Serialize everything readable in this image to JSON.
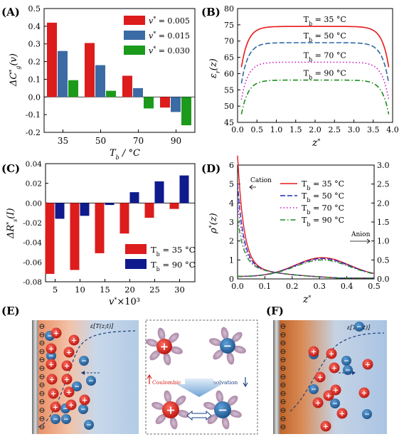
{
  "panels": {
    "A": {
      "label": "(A)"
    },
    "B": {
      "label": "(B)"
    },
    "C": {
      "label": "(C)"
    },
    "D": {
      "label": "(D)"
    },
    "E": {
      "label": "(E)"
    },
    "F": {
      "label": "(F)"
    }
  },
  "schematic": {
    "E_field_label": "ε[T(z;t)]",
    "F_field_label": "ε[T(z;t)]",
    "coulombic": "Coulombic",
    "solvation": "solvation",
    "plus": "+",
    "minus": "−",
    "electrode_sign": "⊖"
  },
  "chart_data": [
    {
      "panel": "A",
      "type": "bar",
      "categories": [
        "35",
        "50",
        "70",
        "90"
      ],
      "series": [
        {
          "name": "v* = 0.005",
          "color": "#dd1c1c",
          "values": [
            0.42,
            0.305,
            0.12,
            -0.06
          ]
        },
        {
          "name": "v* = 0.015",
          "color": "#3b6ba5",
          "values": [
            0.26,
            0.18,
            0.05,
            -0.085
          ]
        },
        {
          "name": "v* = 0.030",
          "color": "#1c9a1c",
          "values": [
            0.095,
            0.035,
            -0.065,
            -0.16
          ]
        }
      ],
      "xlabel": "T_b / °C",
      "ylabel": "ΔC*_g(v)",
      "ylim": [
        -0.2,
        0.5
      ],
      "yticks": [
        "-0.2",
        "-0.1",
        "0.0",
        "0.1",
        "0.2",
        "0.3",
        "0.4",
        "0.5"
      ],
      "legend": "top-right"
    },
    {
      "panel": "B",
      "type": "line",
      "x_range": [
        0,
        4
      ],
      "xticks": [
        "0.0",
        "0.5",
        "1.0",
        "1.5",
        "2.0",
        "2.5",
        "3.0",
        "3.5",
        "4.0"
      ],
      "ylim": [
        45,
        80
      ],
      "yticks": [
        "45",
        "50",
        "55",
        "60",
        "65",
        "70",
        "75",
        "80"
      ],
      "series": [
        {
          "name": "T_b = 35 °C",
          "color": "#e8191c",
          "dash": "solid",
          "plateau": 74.5,
          "edge": 62.0
        },
        {
          "name": "T_b = 50 °C",
          "color": "#2f6aa3",
          "dash": "dash",
          "plateau": 69.5,
          "edge": 57.0
        },
        {
          "name": "T_b = 70 °C",
          "color": "#c619c6",
          "dash": "dot",
          "plateau": 63.5,
          "edge": 52.0
        },
        {
          "name": "T_b = 90 °C",
          "color": "#1c8c1c",
          "dash": "dashdot",
          "plateau": 58.0,
          "edge": 47.5
        }
      ],
      "xlabel": "z*",
      "ylabel": "ε_r(z)"
    },
    {
      "panel": "C",
      "type": "bar",
      "categories": [
        "5",
        "10",
        "15",
        "20",
        "25",
        "30"
      ],
      "series": [
        {
          "name": "T_b = 35 °C",
          "color": "#dd1c1c",
          "values": [
            -0.072,
            -0.068,
            -0.051,
            -0.031,
            -0.015,
            -0.006
          ]
        },
        {
          "name": "T_b = 90 °C",
          "color": "#0f1a8c",
          "values": [
            -0.016,
            -0.013,
            -0.002,
            0.011,
            0.022,
            0.028
          ]
        }
      ],
      "xlabel": "v*×10³",
      "ylabel": "ΔR*_s(I)",
      "ylim": [
        -0.08,
        0.04
      ],
      "yticks": [
        "-0.08",
        "-0.06",
        "-0.04",
        "-0.02",
        "0.00",
        "0.02",
        "0.04"
      ],
      "legend": "bottom-right"
    },
    {
      "panel": "D",
      "type": "line",
      "x_range": [
        0,
        0.5
      ],
      "xticks": [
        "0.0",
        "0.1",
        "0.2",
        "0.3",
        "0.4",
        "0.5"
      ],
      "ylim_left": [
        0,
        6
      ],
      "yticks_left": [
        "0",
        "1",
        "2",
        "3",
        "4",
        "5",
        "6"
      ],
      "ylim_right": [
        0,
        3.0
      ],
      "yticks_right": [
        "0.0",
        "0.5",
        "1.0",
        "1.5",
        "2.0",
        "2.5",
        "3.0"
      ],
      "annotations": [
        "Cation",
        "Anion"
      ],
      "series": [
        {
          "name": "T_b = 35 °C",
          "color": "#e8191c",
          "dash": "solid",
          "cation_peak": 5.9,
          "anion_peak": 1.12
        },
        {
          "name": "T_b = 50 °C",
          "color": "#1a2fb5",
          "dash": "dash",
          "cation_peak": 4.4,
          "anion_peak": 1.08
        },
        {
          "name": "T_b = 70 °C",
          "color": "#c619c6",
          "dash": "dot",
          "cation_peak": 3.5,
          "anion_peak": 1.04
        },
        {
          "name": "T_b = 90 °C",
          "color": "#1c8c1c",
          "dash": "dashdot",
          "cation_peak": 2.6,
          "anion_peak": 1.0
        }
      ],
      "xlabel": "z*",
      "ylabel": "ρ*(z)"
    }
  ]
}
